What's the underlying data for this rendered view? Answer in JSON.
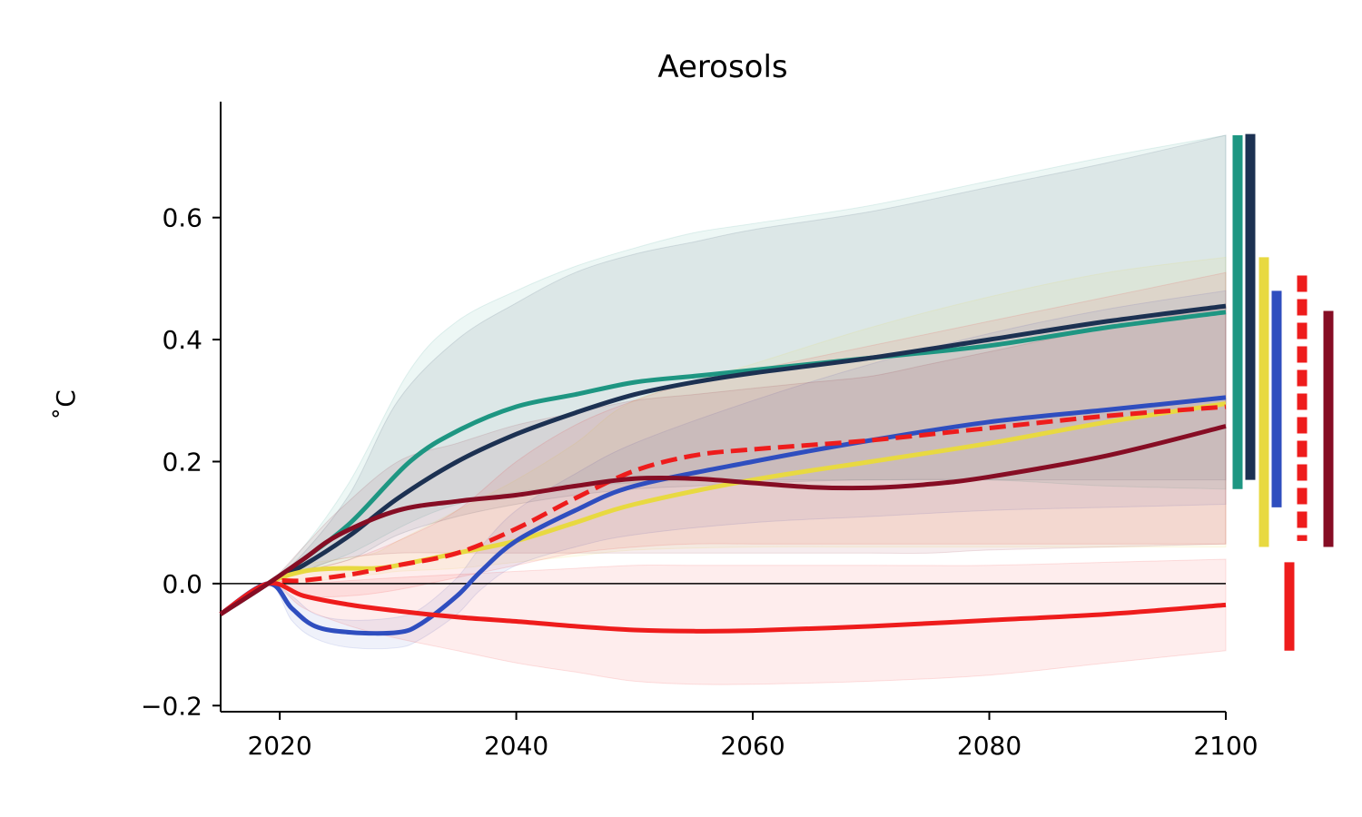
{
  "chart_data": {
    "type": "line",
    "title": "Aerosols",
    "xlabel": "",
    "ylabel": "˚C",
    "xlim": [
      2015,
      2100
    ],
    "ylim": [
      -0.21,
      0.79
    ],
    "xticks": [
      2020,
      2040,
      2060,
      2080,
      2100
    ],
    "yticks": [
      -0.2,
      0.0,
      0.2,
      0.4,
      0.6
    ],
    "ytick_labels": [
      "−0.2",
      "0.0",
      "0.2",
      "0.4",
      "0.6"
    ],
    "grid": false,
    "legend": "none",
    "zero_line": true,
    "series": [
      {
        "color": "#1e9682",
        "dash": false,
        "x": [
          2015,
          2019,
          2022,
          2026,
          2031,
          2035,
          2040,
          2045,
          2050,
          2055,
          2060,
          2070,
          2080,
          2090,
          2100
        ],
        "values": [
          -0.05,
          0.0,
          0.04,
          0.1,
          0.2,
          0.25,
          0.29,
          0.31,
          0.33,
          0.34,
          0.35,
          0.37,
          0.39,
          0.42,
          0.445
        ],
        "band_lower": [
          -0.05,
          0.0,
          0.02,
          0.05,
          0.1,
          0.13,
          0.15,
          0.16,
          0.165,
          0.17,
          0.17,
          0.17,
          0.17,
          0.16,
          0.155
        ],
        "band_upper": [
          -0.05,
          0.0,
          0.06,
          0.17,
          0.35,
          0.43,
          0.48,
          0.52,
          0.55,
          0.575,
          0.59,
          0.62,
          0.66,
          0.7,
          0.735
        ]
      },
      {
        "color": "#1c3152",
        "dash": false,
        "x": [
          2015,
          2019,
          2022,
          2026,
          2030,
          2035,
          2040,
          2045,
          2050,
          2055,
          2060,
          2070,
          2080,
          2090,
          2100
        ],
        "values": [
          -0.05,
          0.0,
          0.03,
          0.08,
          0.14,
          0.2,
          0.245,
          0.28,
          0.31,
          0.33,
          0.345,
          0.37,
          0.4,
          0.43,
          0.455
        ],
        "band_lower": [
          -0.05,
          0.0,
          0.02,
          0.04,
          0.08,
          0.11,
          0.13,
          0.145,
          0.155,
          0.16,
          0.165,
          0.17,
          0.17,
          0.17,
          0.17
        ],
        "band_upper": [
          -0.05,
          0.0,
          0.05,
          0.15,
          0.3,
          0.4,
          0.46,
          0.51,
          0.54,
          0.56,
          0.58,
          0.61,
          0.65,
          0.69,
          0.735
        ]
      },
      {
        "color": "#e8d941",
        "dash": false,
        "x": [
          2015,
          2019,
          2022,
          2025,
          2028,
          2030,
          2035,
          2040,
          2045,
          2050,
          2060,
          2070,
          2080,
          2090,
          2100
        ],
        "values": [
          -0.05,
          0.0,
          0.02,
          0.025,
          0.025,
          0.03,
          0.05,
          0.07,
          0.1,
          0.13,
          0.17,
          0.2,
          0.23,
          0.265,
          0.295
        ],
        "band_lower": [
          -0.05,
          0.0,
          0.0,
          0.01,
          0.015,
          0.02,
          0.025,
          0.035,
          0.045,
          0.055,
          0.06,
          0.06,
          0.06,
          0.06,
          0.06
        ],
        "band_upper": [
          -0.05,
          0.0,
          0.03,
          0.04,
          0.05,
          0.07,
          0.12,
          0.17,
          0.23,
          0.3,
          0.36,
          0.42,
          0.47,
          0.51,
          0.535
        ]
      },
      {
        "color": "#2f4ebf",
        "dash": false,
        "x": [
          2015,
          2019,
          2021,
          2023,
          2026,
          2030,
          2032,
          2035,
          2037,
          2040,
          2045,
          2050,
          2060,
          2070,
          2080,
          2090,
          2100
        ],
        "values": [
          -0.05,
          0.0,
          -0.04,
          -0.07,
          -0.08,
          -0.08,
          -0.065,
          -0.02,
          0.02,
          0.07,
          0.12,
          0.16,
          0.2,
          0.235,
          0.265,
          0.285,
          0.305
        ],
        "band_lower": [
          -0.05,
          0.0,
          -0.06,
          -0.09,
          -0.105,
          -0.105,
          -0.09,
          -0.05,
          -0.01,
          0.03,
          0.06,
          0.08,
          0.1,
          0.11,
          0.12,
          0.125,
          0.13
        ],
        "band_upper": [
          -0.05,
          0.0,
          -0.02,
          -0.05,
          -0.06,
          -0.055,
          -0.04,
          0.01,
          0.06,
          0.12,
          0.18,
          0.23,
          0.3,
          0.36,
          0.41,
          0.45,
          0.48
        ]
      },
      {
        "color": "#ee1c1c",
        "dash": true,
        "x": [
          2015,
          2019,
          2022,
          2026,
          2030,
          2035,
          2040,
          2045,
          2050,
          2055,
          2060,
          2070,
          2080,
          2090,
          2100
        ],
        "values": [
          -0.05,
          0.0,
          0.005,
          0.015,
          0.03,
          0.05,
          0.09,
          0.14,
          0.185,
          0.21,
          0.22,
          0.235,
          0.255,
          0.275,
          0.29
        ],
        "band_lower": [
          -0.05,
          0.0,
          -0.02,
          -0.02,
          -0.01,
          0.01,
          0.03,
          0.05,
          0.06,
          0.065,
          0.065,
          0.065,
          0.065,
          0.065,
          0.065
        ],
        "band_upper": [
          -0.05,
          0.0,
          0.02,
          0.04,
          0.07,
          0.12,
          0.2,
          0.26,
          0.3,
          0.33,
          0.35,
          0.39,
          0.43,
          0.47,
          0.51
        ]
      },
      {
        "color": "#ee1c1c",
        "dash": false,
        "x": [
          2015,
          2019,
          2022,
          2026,
          2030,
          2035,
          2040,
          2045,
          2050,
          2055,
          2060,
          2070,
          2080,
          2090,
          2100
        ],
        "values": [
          -0.05,
          0.0,
          -0.02,
          -0.035,
          -0.045,
          -0.055,
          -0.062,
          -0.07,
          -0.076,
          -0.078,
          -0.077,
          -0.07,
          -0.06,
          -0.05,
          -0.035
        ],
        "band_lower": [
          -0.05,
          0.0,
          -0.04,
          -0.07,
          -0.09,
          -0.11,
          -0.13,
          -0.145,
          -0.16,
          -0.165,
          -0.165,
          -0.16,
          -0.15,
          -0.13,
          -0.11
        ],
        "band_upper": [
          -0.05,
          0.0,
          0.0,
          0.005,
          0.01,
          0.015,
          0.02,
          0.025,
          0.03,
          0.03,
          0.03,
          0.03,
          0.03,
          0.035,
          0.04
        ]
      },
      {
        "color": "#860d24",
        "dash": false,
        "x": [
          2015,
          2019,
          2022,
          2025,
          2030,
          2035,
          2040,
          2045,
          2050,
          2055,
          2060,
          2065,
          2070,
          2075,
          2080,
          2090,
          2100
        ],
        "values": [
          -0.05,
          0.0,
          0.04,
          0.08,
          0.12,
          0.135,
          0.145,
          0.16,
          0.172,
          0.172,
          0.165,
          0.158,
          0.157,
          0.163,
          0.175,
          0.21,
          0.258
        ],
        "band_lower": [
          -0.05,
          0.0,
          0.02,
          0.04,
          0.05,
          0.05,
          0.05,
          0.05,
          0.05,
          0.05,
          0.05,
          0.05,
          0.05,
          0.05,
          0.055,
          0.06,
          0.065
        ],
        "band_upper": [
          -0.05,
          0.0,
          0.06,
          0.12,
          0.2,
          0.23,
          0.26,
          0.28,
          0.3,
          0.31,
          0.32,
          0.33,
          0.34,
          0.36,
          0.38,
          0.42,
          0.455
        ]
      }
    ],
    "range_bars": [
      {
        "color": "#1e9682",
        "dash": false,
        "low": 0.155,
        "high": 0.735
      },
      {
        "color": "#1c3152",
        "dash": false,
        "low": 0.17,
        "high": 0.737
      },
      {
        "color": "#e8d941",
        "dash": false,
        "low": 0.06,
        "high": 0.535
      },
      {
        "color": "#2f4ebf",
        "dash": false,
        "low": 0.125,
        "high": 0.48
      },
      {
        "color": "#ee1c1c",
        "dash": false,
        "low": -0.11,
        "high": 0.035
      },
      {
        "color": "#ee1c1c",
        "dash": true,
        "low": 0.07,
        "high": 0.505
      },
      {
        "color": "#860d24",
        "dash": false,
        "low": 0.06,
        "high": 0.447
      }
    ]
  }
}
